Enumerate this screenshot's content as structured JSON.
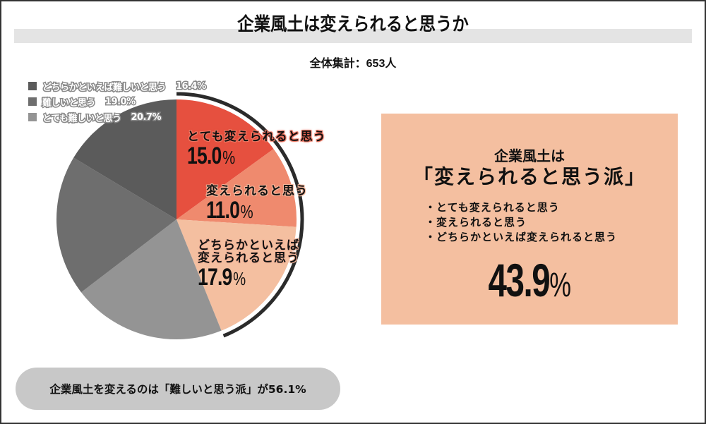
{
  "header": {
    "title": "企業風土は変えられると思うか",
    "subtitle": "全体集計：653人"
  },
  "legend": [
    {
      "label": "どちらかといえば難しいと思う",
      "value": "16.4%",
      "color": "#5b5b5b"
    },
    {
      "label": "難しいと思う",
      "value": "19.0%",
      "color": "#6e6e6e"
    },
    {
      "label": "とても難しいと思う",
      "value": "20.7%",
      "color": "#949494"
    }
  ],
  "slice_labels": [
    {
      "name": "とても変えられると思う",
      "value": "15.0",
      "unit": "%"
    },
    {
      "name": "変えられると思う",
      "value": "11.0",
      "unit": "%"
    },
    {
      "name_line1": "どちらかといえば",
      "name_line2": "変えられると思う",
      "value": "17.9",
      "unit": "%"
    }
  ],
  "panel": {
    "heading1": "企業風土は",
    "heading2": "「変えられると思う派」",
    "items": [
      "・とても変えられると思う",
      "・変えられると思う",
      "・どちらかといえば変えられると思う"
    ],
    "total_value": "43.9",
    "total_unit": "%",
    "background": "#f4bfa0"
  },
  "footer": {
    "text": "企業風土を変えるのは「難しいと思う派」が56.1%"
  },
  "chart_data": {
    "type": "pie",
    "title": "企業風土は変えられると思うか",
    "subtitle": "全体集計：653人",
    "start_angle": "12 o'clock",
    "direction": "clockwise",
    "categories": [
      "とても変えられると思う",
      "変えられると思う",
      "どちらかといえば変えられると思う",
      "とても難しいと思う",
      "難しいと思う",
      "どちらかといえば難しいと思う"
    ],
    "values": [
      15.0,
      11.0,
      17.9,
      20.7,
      19.0,
      16.4
    ],
    "colors": [
      "#e6503f",
      "#ef8a6e",
      "#f4bfa0",
      "#949494",
      "#6e6e6e",
      "#5b5b5b"
    ],
    "groups": [
      {
        "name": "変えられると思う派",
        "total": 43.9
      },
      {
        "name": "難しいと思う派",
        "total": 56.1
      }
    ],
    "legend_position": "top-left",
    "sample_size": 653
  }
}
